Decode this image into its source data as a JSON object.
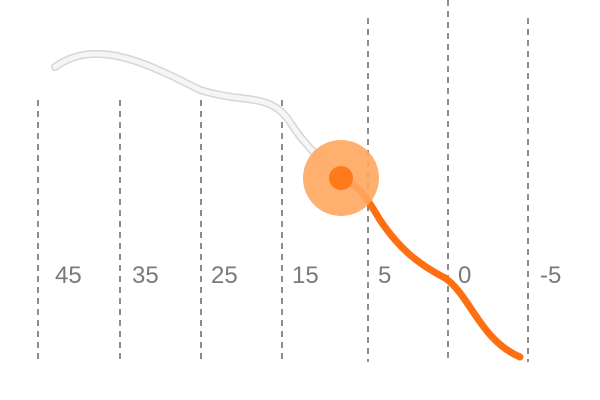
{
  "slider": {
    "tick_labels": [
      "45",
      "35",
      "25",
      "15",
      "5",
      "0",
      "-5"
    ],
    "colors": {
      "accent": "#ff7a1a",
      "accent_halo": "#ffa65e",
      "track_trail": "#f3f3f3",
      "track_trail_outline": "#d6d6d6",
      "divider": "#8c8c8c",
      "label": "#7a7a7a"
    },
    "handle_icon": "dot-handle-icon"
  }
}
